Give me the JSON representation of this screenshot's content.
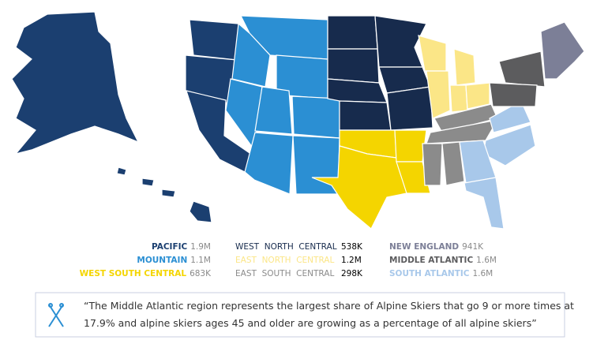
{
  "map": {
    "regions": [
      {
        "name": "PACIFIC",
        "value": "1.9M",
        "color": "#1b3f70"
      },
      {
        "name": "MOUNTAIN",
        "value": "1.1M",
        "color": "#2b8fd3"
      },
      {
        "name": "WEST SOUTH CENTRAL",
        "value": "683K",
        "color": "#f4d500"
      },
      {
        "name": "WEST  NORTH  CENTRAL",
        "value": "538K",
        "color": "#172b4d"
      },
      {
        "name": "EAST  NORTH  CENTRAL",
        "value": "1.2M",
        "color": "#fbe687"
      },
      {
        "name": "EAST  SOUTH  CENTRAL",
        "value": "298K",
        "color": "#8b8b8b"
      },
      {
        "name": "NEW ENGLAND",
        "value": "941K",
        "color": "#7c7f97"
      },
      {
        "name": "MIDDLE ATLANTIC",
        "value": "1.6M",
        "color": "#5c5c5e"
      },
      {
        "name": "SOUTH ATLANTIC",
        "value": "1.6M",
        "color": "#a8c8ea"
      }
    ]
  },
  "quote": {
    "lines": [
      "“The Middle Atlantic region represents the largest share of Alpine Skiers that go 9 or more times at",
      "17.9% and alpine skiers ages 45 and older are growing as a percentage of all alpine skiers”"
    ]
  }
}
